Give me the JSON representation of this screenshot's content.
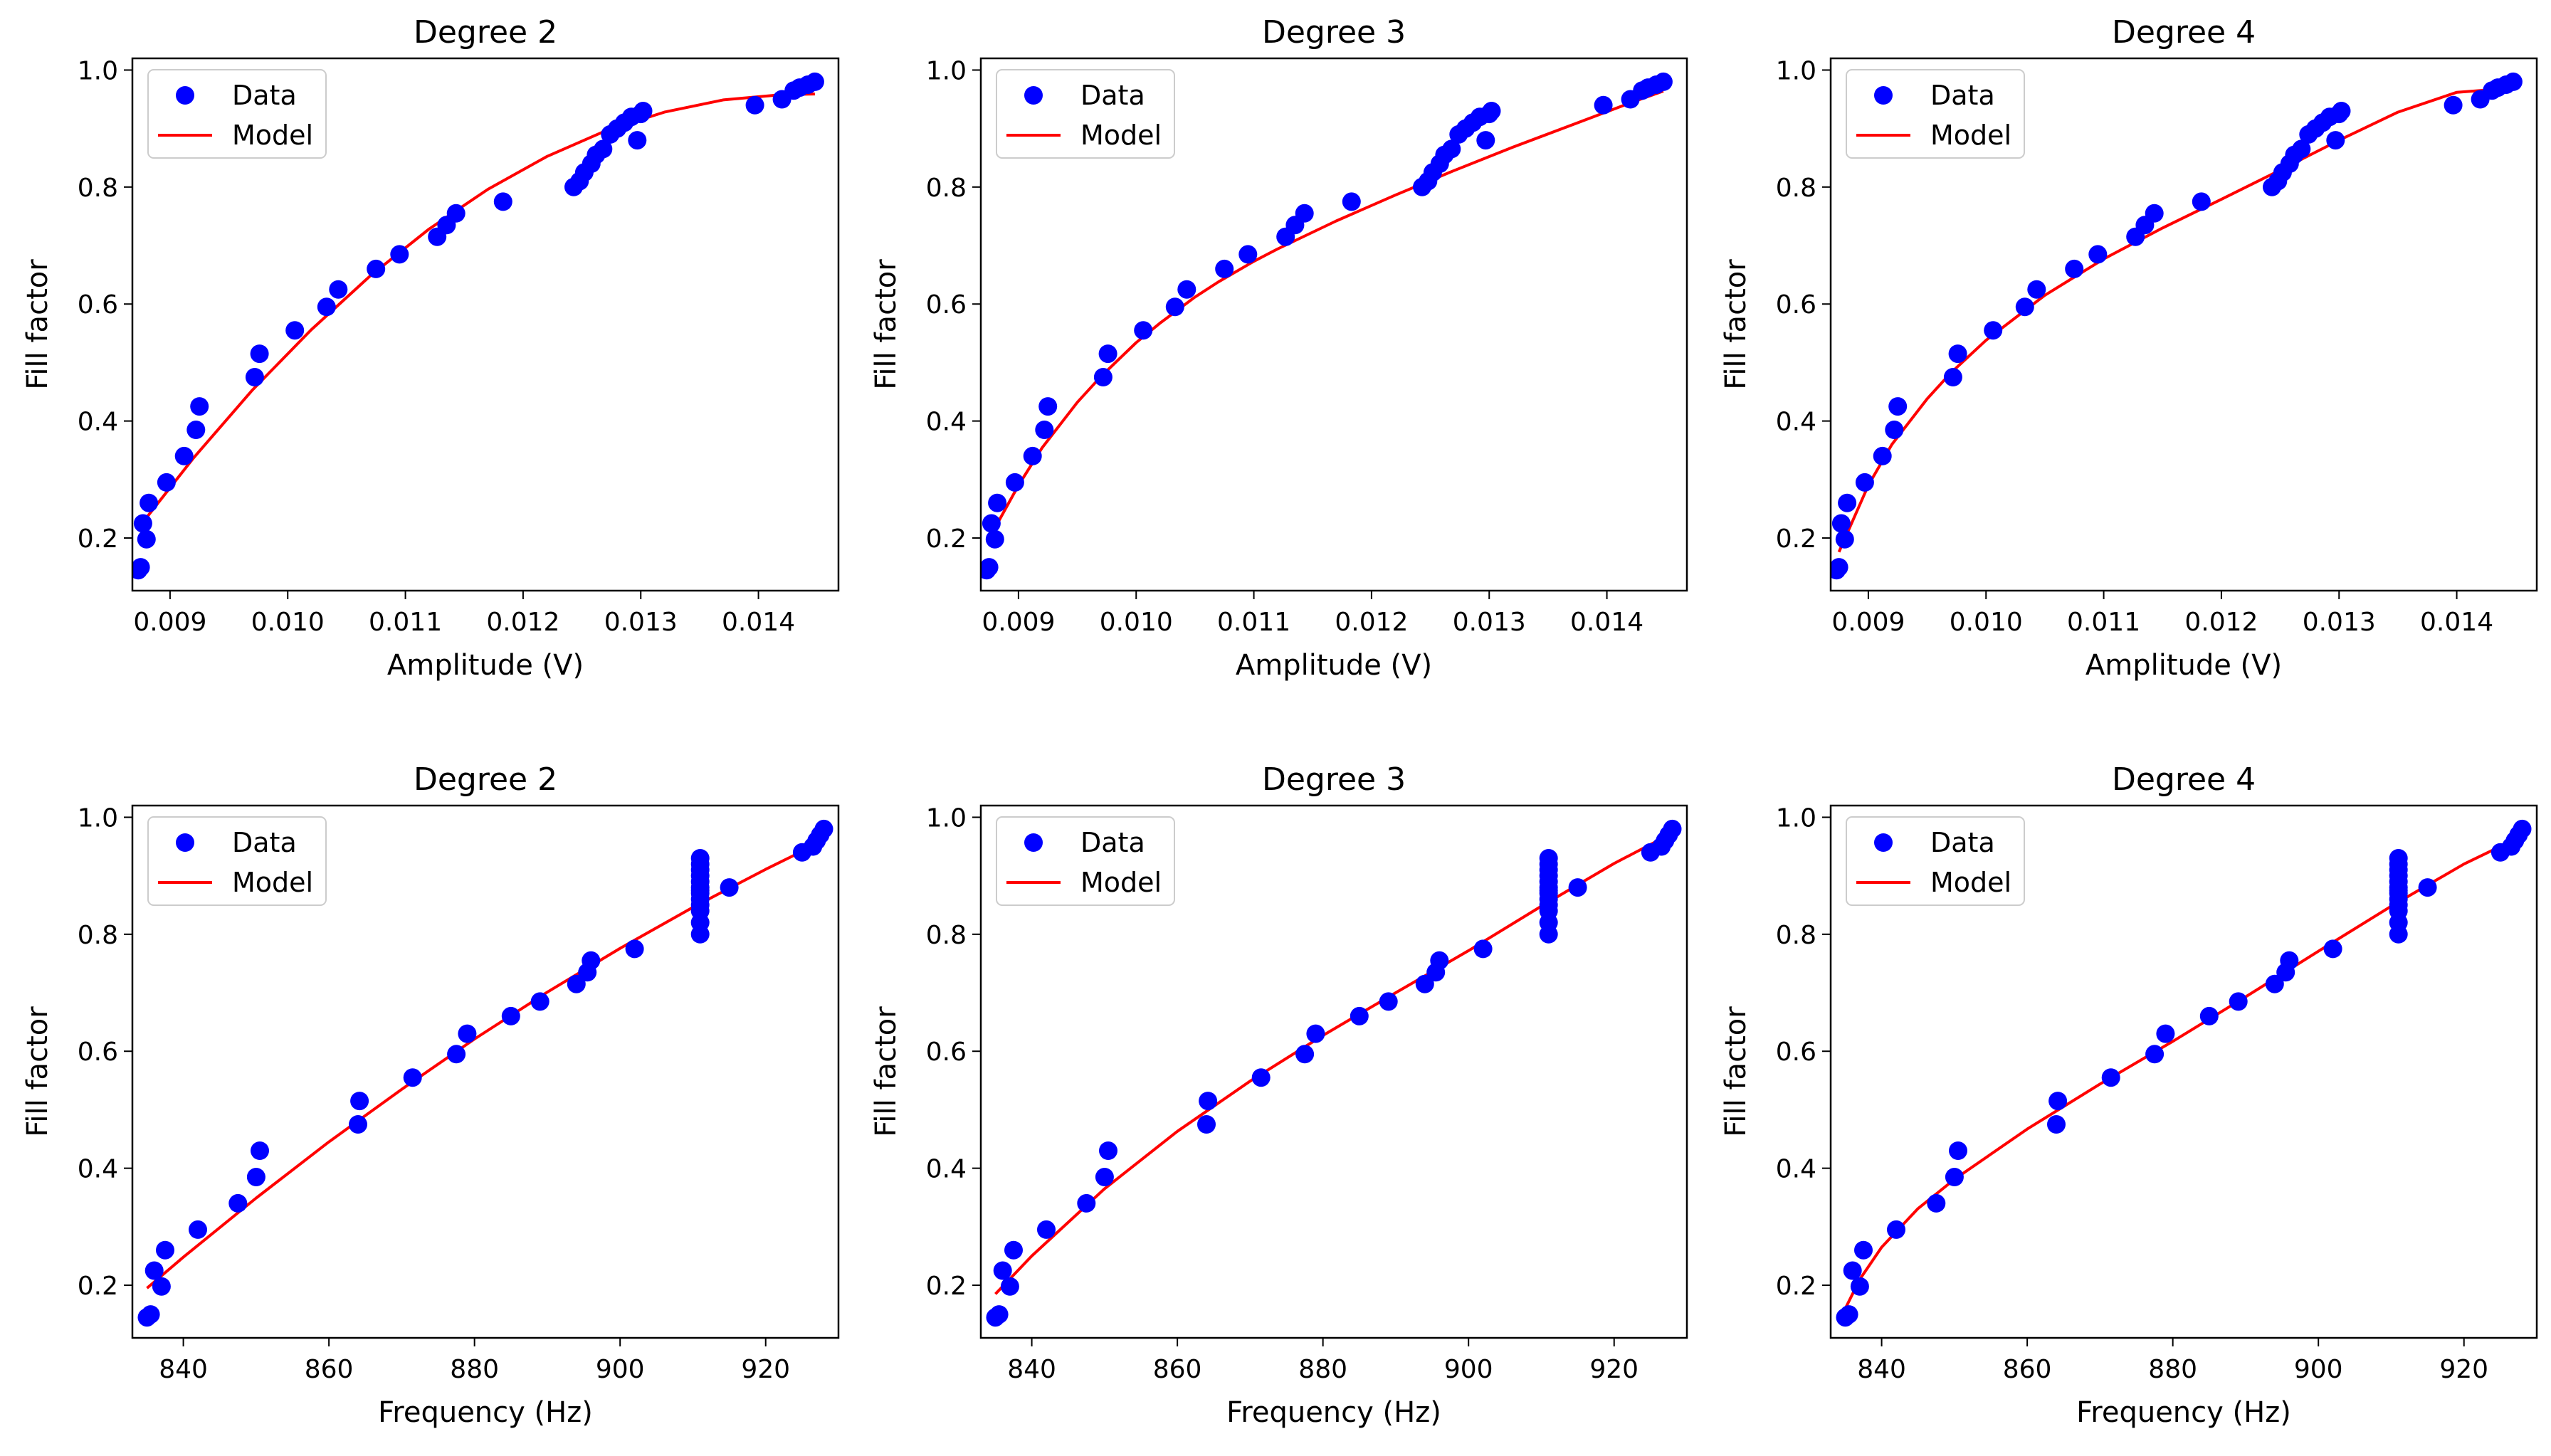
{
  "figure": {
    "description_colors": {
      "data": "#0000ff",
      "model": "#ff0000",
      "legend_border": "#cccccc"
    }
  },
  "chart_data": [
    {
      "type": "scatter",
      "title": "Degree 2",
      "xlabel": "Amplitude (V)",
      "ylabel": "Fill factor",
      "xlim": [
        0.00868,
        0.01468
      ],
      "ylim": [
        0.11,
        1.02
      ],
      "xticks": [
        0.009,
        0.01,
        0.011,
        0.012,
        0.013,
        0.014
      ],
      "xtick_labels": [
        "0.009",
        "0.010",
        "0.011",
        "0.012",
        "0.013",
        "0.014"
      ],
      "yticks": [
        0.2,
        0.4,
        0.6,
        0.8,
        1.0
      ],
      "ytick_labels": [
        "0.2",
        "0.4",
        "0.6",
        "0.8",
        "1.0"
      ],
      "legend": [
        "Data",
        "Model"
      ],
      "legend_loc": "upper left",
      "series": [
        {
          "name": "Data",
          "kind": "scatter",
          "color": "#0000ff",
          "x": [
            0.00873,
            0.00875,
            0.00877,
            0.0088,
            0.00882,
            0.00897,
            0.00912,
            0.00922,
            0.00925,
            0.00972,
            0.00976,
            0.01006,
            0.01033,
            0.01043,
            0.01075,
            0.01095,
            0.01127,
            0.01135,
            0.01143,
            0.01183,
            0.01243,
            0.01248,
            0.01252,
            0.01258,
            0.01262,
            0.01268,
            0.01274,
            0.0128,
            0.01286,
            0.01292,
            0.01297,
            0.013,
            0.01302,
            0.01397,
            0.0142,
            0.0143,
            0.01435,
            0.01442,
            0.01448
          ],
          "y": [
            0.145,
            0.15,
            0.225,
            0.198,
            0.26,
            0.295,
            0.34,
            0.385,
            0.425,
            0.475,
            0.515,
            0.555,
            0.595,
            0.625,
            0.66,
            0.685,
            0.715,
            0.735,
            0.755,
            0.775,
            0.8,
            0.81,
            0.825,
            0.84,
            0.855,
            0.865,
            0.89,
            0.9,
            0.91,
            0.92,
            0.88,
            0.925,
            0.93,
            0.94,
            0.95,
            0.965,
            0.97,
            0.975,
            0.98
          ]
        },
        {
          "name": "Model",
          "kind": "line",
          "color": "#ff0000",
          "x": [
            0.00875,
            0.0092,
            0.0097,
            0.0102,
            0.0107,
            0.0112,
            0.0117,
            0.0122,
            0.0127,
            0.0132,
            0.0137,
            0.0142,
            0.01448
          ],
          "y": [
            0.222,
            0.337,
            0.453,
            0.556,
            0.648,
            0.728,
            0.796,
            0.852,
            0.896,
            0.928,
            0.949,
            0.958,
            0.959
          ]
        }
      ]
    },
    {
      "type": "scatter",
      "title": "Degree 3",
      "xlabel": "Amplitude (V)",
      "ylabel": "Fill factor",
      "xlim": [
        0.00868,
        0.01468
      ],
      "ylim": [
        0.11,
        1.02
      ],
      "xticks": [
        0.009,
        0.01,
        0.011,
        0.012,
        0.013,
        0.014
      ],
      "xtick_labels": [
        "0.009",
        "0.010",
        "0.011",
        "0.012",
        "0.013",
        "0.014"
      ],
      "yticks": [
        0.2,
        0.4,
        0.6,
        0.8,
        1.0
      ],
      "ytick_labels": [
        "0.2",
        "0.4",
        "0.6",
        "0.8",
        "1.0"
      ],
      "legend": [
        "Data",
        "Model"
      ],
      "legend_loc": "upper left",
      "series": [
        {
          "name": "Data",
          "kind": "scatter",
          "color": "#0000ff",
          "x": [
            0.00873,
            0.00875,
            0.00877,
            0.0088,
            0.00882,
            0.00897,
            0.00912,
            0.00922,
            0.00925,
            0.00972,
            0.00976,
            0.01006,
            0.01033,
            0.01043,
            0.01075,
            0.01095,
            0.01127,
            0.01135,
            0.01143,
            0.01183,
            0.01243,
            0.01248,
            0.01252,
            0.01258,
            0.01262,
            0.01268,
            0.01274,
            0.0128,
            0.01286,
            0.01292,
            0.01297,
            0.013,
            0.01302,
            0.01397,
            0.0142,
            0.0143,
            0.01435,
            0.01442,
            0.01448
          ],
          "y": [
            0.145,
            0.15,
            0.225,
            0.198,
            0.26,
            0.295,
            0.34,
            0.385,
            0.425,
            0.475,
            0.515,
            0.555,
            0.595,
            0.625,
            0.66,
            0.685,
            0.715,
            0.735,
            0.755,
            0.775,
            0.8,
            0.81,
            0.825,
            0.84,
            0.855,
            0.865,
            0.89,
            0.9,
            0.91,
            0.92,
            0.88,
            0.925,
            0.93,
            0.94,
            0.95,
            0.965,
            0.97,
            0.975,
            0.98
          ]
        },
        {
          "name": "Model",
          "kind": "line",
          "color": "#ff0000",
          "x": [
            0.00875,
            0.009,
            0.0092,
            0.0095,
            0.0097,
            0.01,
            0.0102,
            0.0105,
            0.0107,
            0.011,
            0.0112,
            0.0117,
            0.0122,
            0.0127,
            0.0132,
            0.0137,
            0.0142,
            0.01448
          ],
          "y": [
            0.199,
            0.29,
            0.354,
            0.432,
            0.476,
            0.534,
            0.567,
            0.612,
            0.638,
            0.673,
            0.694,
            0.742,
            0.786,
            0.828,
            0.868,
            0.906,
            0.944,
            0.964
          ]
        }
      ]
    },
    {
      "type": "scatter",
      "title": "Degree 4",
      "xlabel": "Amplitude (V)",
      "ylabel": "Fill factor",
      "xlim": [
        0.00868,
        0.01468
      ],
      "ylim": [
        0.11,
        1.02
      ],
      "xticks": [
        0.009,
        0.01,
        0.011,
        0.012,
        0.013,
        0.014
      ],
      "xtick_labels": [
        "0.009",
        "0.010",
        "0.011",
        "0.012",
        "0.013",
        "0.014"
      ],
      "yticks": [
        0.2,
        0.4,
        0.6,
        0.8,
        1.0
      ],
      "ytick_labels": [
        "0.2",
        "0.4",
        "0.6",
        "0.8",
        "1.0"
      ],
      "legend": [
        "Data",
        "Model"
      ],
      "legend_loc": "upper left",
      "series": [
        {
          "name": "Data",
          "kind": "scatter",
          "color": "#0000ff",
          "x": [
            0.00873,
            0.00875,
            0.00877,
            0.0088,
            0.00882,
            0.00897,
            0.00912,
            0.00922,
            0.00925,
            0.00972,
            0.00976,
            0.01006,
            0.01033,
            0.01043,
            0.01075,
            0.01095,
            0.01127,
            0.01135,
            0.01143,
            0.01183,
            0.01243,
            0.01248,
            0.01252,
            0.01258,
            0.01262,
            0.01268,
            0.01274,
            0.0128,
            0.01286,
            0.01292,
            0.01297,
            0.013,
            0.01302,
            0.01397,
            0.0142,
            0.0143,
            0.01435,
            0.01442,
            0.01448
          ],
          "y": [
            0.145,
            0.15,
            0.225,
            0.198,
            0.26,
            0.295,
            0.34,
            0.385,
            0.425,
            0.475,
            0.515,
            0.555,
            0.595,
            0.625,
            0.66,
            0.685,
            0.715,
            0.735,
            0.755,
            0.775,
            0.8,
            0.81,
            0.825,
            0.84,
            0.855,
            0.865,
            0.89,
            0.9,
            0.91,
            0.92,
            0.88,
            0.925,
            0.93,
            0.94,
            0.95,
            0.965,
            0.97,
            0.975,
            0.98
          ]
        },
        {
          "name": "Model",
          "kind": "line",
          "color": "#ff0000",
          "x": [
            0.00875,
            0.009,
            0.0092,
            0.0095,
            0.0097,
            0.01,
            0.0105,
            0.011,
            0.0115,
            0.012,
            0.0125,
            0.013,
            0.0135,
            0.014,
            0.0144,
            0.01448
          ],
          "y": [
            0.176,
            0.29,
            0.36,
            0.438,
            0.482,
            0.538,
            0.615,
            0.677,
            0.73,
            0.779,
            0.829,
            0.88,
            0.928,
            0.962,
            0.968,
            0.968
          ]
        }
      ]
    },
    {
      "type": "scatter",
      "title": "Degree 2",
      "xlabel": "Frequency (Hz)",
      "ylabel": "Fill factor",
      "xlim": [
        833,
        930
      ],
      "ylim": [
        0.11,
        1.02
      ],
      "xticks": [
        840,
        860,
        880,
        900,
        920
      ],
      "xtick_labels": [
        "840",
        "860",
        "880",
        "900",
        "920"
      ],
      "yticks": [
        0.2,
        0.4,
        0.6,
        0.8,
        1.0
      ],
      "ytick_labels": [
        "0.2",
        "0.4",
        "0.6",
        "0.8",
        "1.0"
      ],
      "legend": [
        "Data",
        "Model"
      ],
      "legend_loc": "upper left",
      "series": [
        {
          "name": "Data",
          "kind": "scatter",
          "color": "#0000ff",
          "x": [
            835,
            835.5,
            836,
            837,
            837.5,
            842,
            847.5,
            850,
            850.5,
            864,
            864.2,
            871.5,
            877.5,
            879,
            885,
            889,
            894,
            895.5,
            896,
            902,
            911,
            911,
            911,
            911,
            911,
            911,
            911,
            911,
            911,
            911,
            911,
            911,
            911,
            915,
            925,
            926.5,
            927,
            927.5,
            928
          ],
          "y": [
            0.145,
            0.15,
            0.225,
            0.198,
            0.26,
            0.295,
            0.34,
            0.385,
            0.43,
            0.475,
            0.515,
            0.555,
            0.595,
            0.63,
            0.66,
            0.685,
            0.715,
            0.735,
            0.755,
            0.775,
            0.8,
            0.82,
            0.84,
            0.86,
            0.875,
            0.89,
            0.9,
            0.91,
            0.92,
            0.93,
            0.85,
            0.87,
            0.88,
            0.88,
            0.94,
            0.95,
            0.96,
            0.97,
            0.98
          ]
        },
        {
          "name": "Model",
          "kind": "line",
          "color": "#ff0000",
          "x": [
            835,
            840,
            850,
            860,
            870,
            880,
            890,
            900,
            910,
            920,
            928
          ],
          "y": [
            0.195,
            0.248,
            0.349,
            0.445,
            0.535,
            0.621,
            0.701,
            0.776,
            0.846,
            0.911,
            0.96
          ]
        }
      ]
    },
    {
      "type": "scatter",
      "title": "Degree 3",
      "xlabel": "Frequency (Hz)",
      "ylabel": "Fill factor",
      "xlim": [
        833,
        930
      ],
      "ylim": [
        0.11,
        1.02
      ],
      "xticks": [
        840,
        860,
        880,
        900,
        920
      ],
      "xtick_labels": [
        "840",
        "860",
        "880",
        "900",
        "920"
      ],
      "yticks": [
        0.2,
        0.4,
        0.6,
        0.8,
        1.0
      ],
      "ytick_labels": [
        "0.2",
        "0.4",
        "0.6",
        "0.8",
        "1.0"
      ],
      "legend": [
        "Data",
        "Model"
      ],
      "legend_loc": "upper left",
      "series": [
        {
          "name": "Data",
          "kind": "scatter",
          "color": "#0000ff",
          "x": [
            835,
            835.5,
            836,
            837,
            837.5,
            842,
            847.5,
            850,
            850.5,
            864,
            864.2,
            871.5,
            877.5,
            879,
            885,
            889,
            894,
            895.5,
            896,
            902,
            911,
            911,
            911,
            911,
            911,
            911,
            911,
            911,
            911,
            911,
            911,
            911,
            911,
            915,
            925,
            926.5,
            927,
            927.5,
            928
          ],
          "y": [
            0.145,
            0.15,
            0.225,
            0.198,
            0.26,
            0.295,
            0.34,
            0.385,
            0.43,
            0.475,
            0.515,
            0.555,
            0.595,
            0.63,
            0.66,
            0.685,
            0.715,
            0.735,
            0.755,
            0.775,
            0.8,
            0.82,
            0.84,
            0.86,
            0.875,
            0.89,
            0.9,
            0.91,
            0.92,
            0.93,
            0.85,
            0.87,
            0.88,
            0.88,
            0.94,
            0.95,
            0.96,
            0.97,
            0.98
          ]
        },
        {
          "name": "Model",
          "kind": "line",
          "color": "#ff0000",
          "x": [
            835,
            840,
            850,
            860,
            870,
            880,
            890,
            900,
            910,
            920,
            928
          ],
          "y": [
            0.185,
            0.25,
            0.365,
            0.463,
            0.549,
            0.627,
            0.7,
            0.772,
            0.848,
            0.921,
            0.973
          ]
        }
      ]
    },
    {
      "type": "scatter",
      "title": "Degree 4",
      "xlabel": "Frequency (Hz)",
      "ylabel": "Fill factor",
      "xlim": [
        833,
        930
      ],
      "ylim": [
        0.11,
        1.02
      ],
      "xticks": [
        840,
        860,
        880,
        900,
        920
      ],
      "xtick_labels": [
        "840",
        "860",
        "880",
        "900",
        "920"
      ],
      "yticks": [
        0.2,
        0.4,
        0.6,
        0.8,
        1.0
      ],
      "ytick_labels": [
        "0.2",
        "0.4",
        "0.6",
        "0.8",
        "1.0"
      ],
      "legend": [
        "Data",
        "Model"
      ],
      "legend_loc": "upper left",
      "series": [
        {
          "name": "Data",
          "kind": "scatter",
          "color": "#0000ff",
          "x": [
            835,
            835.5,
            836,
            837,
            837.5,
            842,
            847.5,
            850,
            850.5,
            864,
            864.2,
            871.5,
            877.5,
            879,
            885,
            889,
            894,
            895.5,
            896,
            902,
            911,
            911,
            911,
            911,
            911,
            911,
            911,
            911,
            911,
            911,
            911,
            911,
            911,
            915,
            925,
            926.5,
            927,
            927.5,
            928
          ],
          "y": [
            0.145,
            0.15,
            0.225,
            0.198,
            0.26,
            0.295,
            0.34,
            0.385,
            0.43,
            0.475,
            0.515,
            0.555,
            0.595,
            0.63,
            0.66,
            0.685,
            0.715,
            0.735,
            0.755,
            0.775,
            0.8,
            0.82,
            0.84,
            0.86,
            0.875,
            0.89,
            0.9,
            0.91,
            0.92,
            0.93,
            0.85,
            0.87,
            0.88,
            0.88,
            0.94,
            0.95,
            0.96,
            0.97,
            0.98
          ]
        },
        {
          "name": "Model",
          "kind": "line",
          "color": "#ff0000",
          "x": [
            835,
            837,
            840,
            845,
            850,
            860,
            870,
            880,
            890,
            900,
            910,
            920,
            928
          ],
          "y": [
            0.16,
            0.21,
            0.265,
            0.331,
            0.381,
            0.467,
            0.544,
            0.617,
            0.693,
            0.771,
            0.848,
            0.92,
            0.968
          ]
        }
      ]
    }
  ]
}
